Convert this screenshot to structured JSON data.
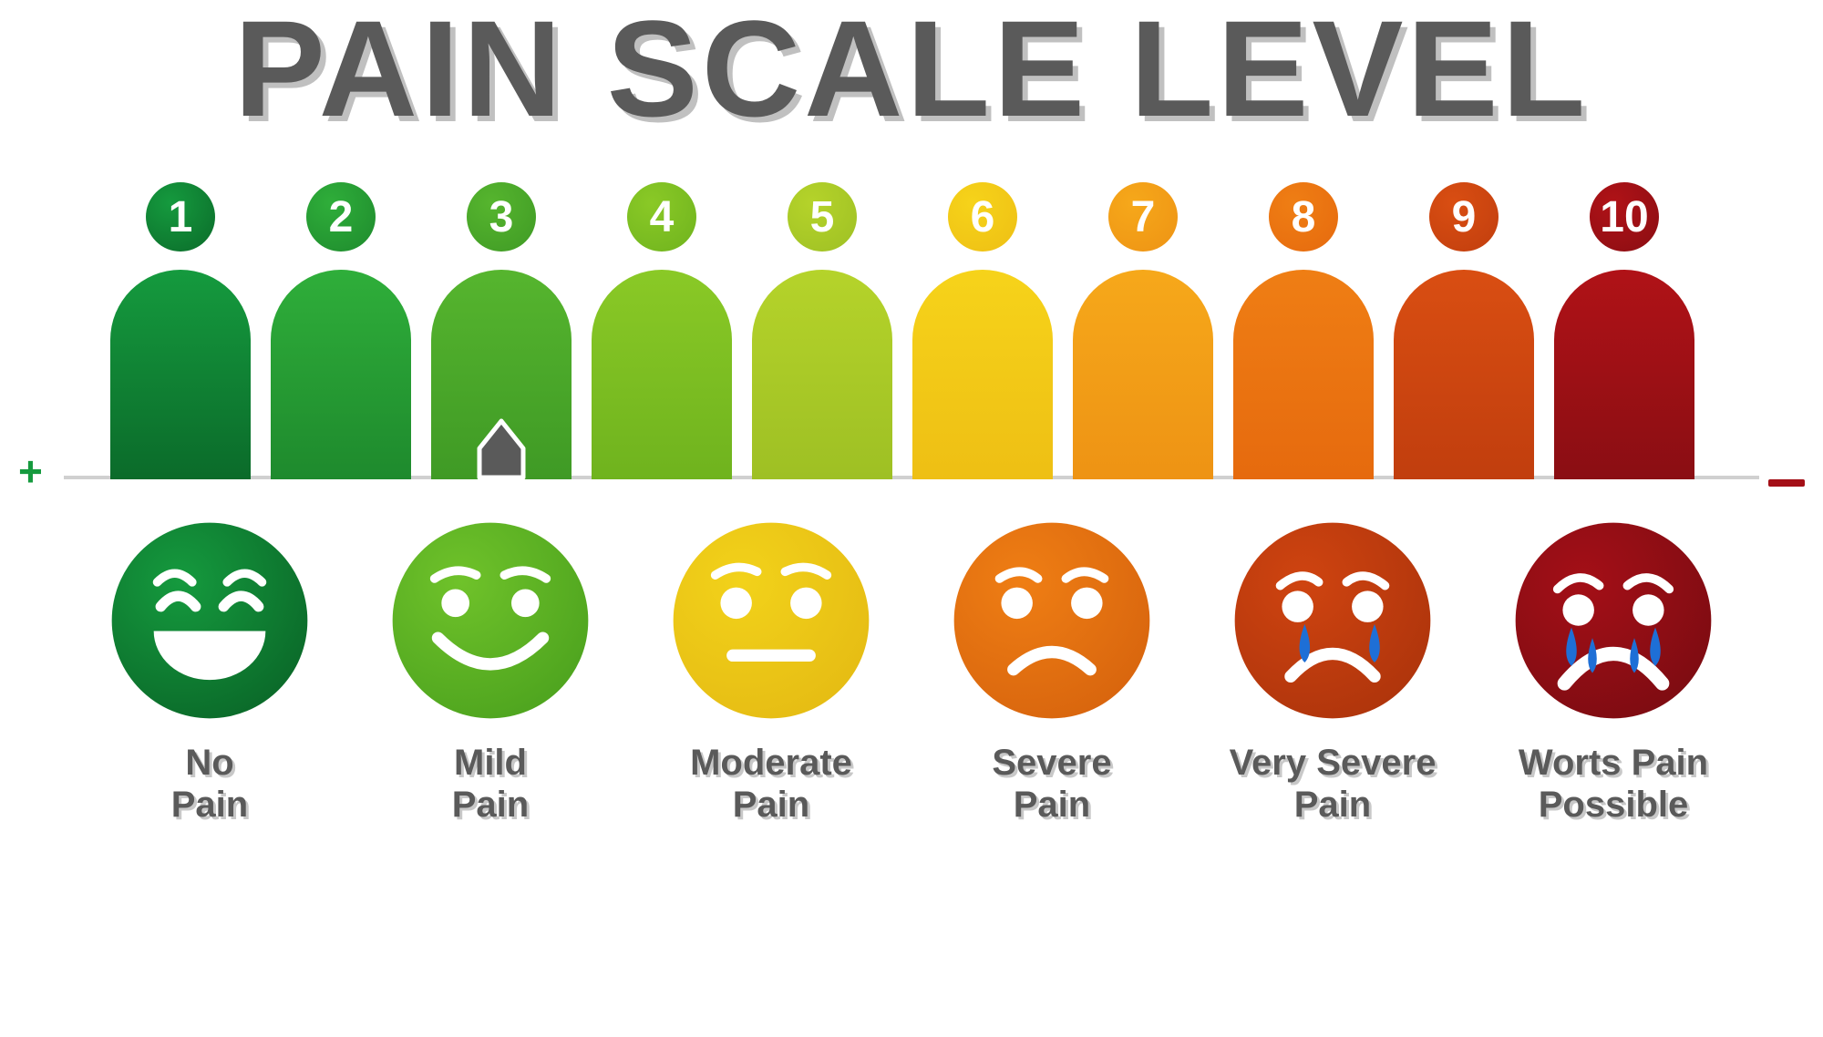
{
  "title": "PAIN SCALE LEVEL",
  "title_color": "#5a5a5a",
  "title_shadow": "#c0c0c0",
  "background_color": "#ffffff",
  "plus_color": "#159a3e",
  "minus_color": "#a40f17",
  "pointer_color": "#5a5a5a",
  "pointer_index": 2,
  "bars": [
    {
      "num": "1",
      "color_top": "#159a3e",
      "color_bottom": "#0b6b2a"
    },
    {
      "num": "2",
      "color_top": "#2fae3a",
      "color_bottom": "#1e8a2d"
    },
    {
      "num": "3",
      "color_top": "#56b52e",
      "color_bottom": "#3f9a25"
    },
    {
      "num": "4",
      "color_top": "#8ac926",
      "color_bottom": "#6fb31e"
    },
    {
      "num": "5",
      "color_top": "#b5d32a",
      "color_bottom": "#9ec024"
    },
    {
      "num": "6",
      "color_top": "#f6d31a",
      "color_bottom": "#eebf14"
    },
    {
      "num": "7",
      "color_top": "#f6a81a",
      "color_bottom": "#ee9314"
    },
    {
      "num": "8",
      "color_top": "#ef7e14",
      "color_bottom": "#e66a0e"
    },
    {
      "num": "9",
      "color_top": "#d94e12",
      "color_bottom": "#c13e0e"
    },
    {
      "num": "10",
      "color_top": "#b01217",
      "color_bottom": "#8a0e13"
    }
  ],
  "faces": [
    {
      "label": "No\nPain",
      "color_top": "#159a3e",
      "color_bottom": "#0b6b2a",
      "expression": "laugh",
      "tears": false
    },
    {
      "label": "Mild\nPain",
      "color_top": "#6fc22a",
      "color_bottom": "#4fa51f",
      "expression": "smile",
      "tears": false
    },
    {
      "label": "Moderate\nPain",
      "color_top": "#f2d21a",
      "color_bottom": "#e6bd14",
      "expression": "neutral",
      "tears": false
    },
    {
      "label": "Severe\nPain",
      "color_top": "#ef7e14",
      "color_bottom": "#d9660e",
      "expression": "frown",
      "tears": false
    },
    {
      "label": "Very Severe\nPain",
      "color_top": "#cf4410",
      "color_bottom": "#b0350c",
      "expression": "sad",
      "tears": true
    },
    {
      "label": "Worts Pain\nPossible",
      "color_top": "#a40f17",
      "color_bottom": "#7f0c12",
      "expression": "cry",
      "tears": true
    }
  ],
  "face_label_color": "#5a5a5a",
  "tear_color": "#1e6fd6",
  "feature_color": "#ffffff"
}
